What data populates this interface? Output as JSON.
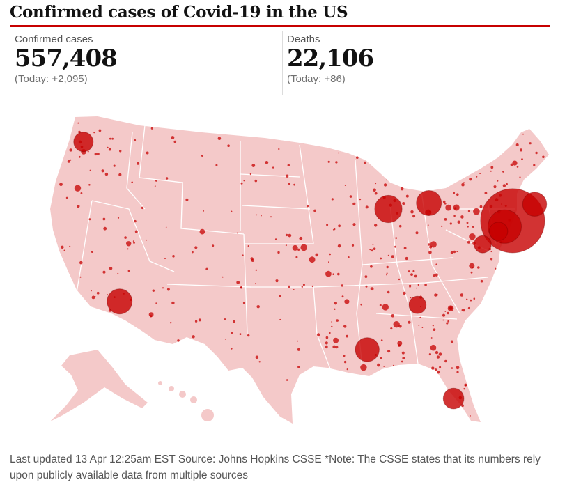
{
  "title": "Confirmed cases of Covid-19 in the US",
  "stats": {
    "confirmed": {
      "label": "Confirmed cases",
      "value": "557,408",
      "today": "(Today: +2,095)"
    },
    "deaths": {
      "label": "Deaths",
      "value": "22,106",
      "today": "(Today: +86)"
    }
  },
  "footer": "Last updated 13 Apr 12:25am EST Source: Johns Hopkins CSSE *Note: The CSSE states that its numbers rely upon publicly available data from multiple sources",
  "colors": {
    "land": "#f4c9c9",
    "bubble": "#c70000",
    "state_border": "#ffffff",
    "accent": "#c70000"
  },
  "map": {
    "type": "proportional-symbol",
    "hotspots": [
      {
        "place": "New York",
        "lat": 40.9,
        "lon": -73.6,
        "size": 1.0
      },
      {
        "place": "New Jersey",
        "lat": 40.4,
        "lon": -74.5,
        "size": 0.45
      },
      {
        "place": "Boston",
        "lat": 42.3,
        "lon": -71.1,
        "size": 0.28
      },
      {
        "place": "Philadelphia",
        "lat": 40.0,
        "lon": -75.2,
        "size": 0.18
      },
      {
        "place": "Detroit",
        "lat": 42.4,
        "lon": -83.1,
        "size": 0.3
      },
      {
        "place": "Chicago",
        "lat": 41.9,
        "lon": -87.7,
        "size": 0.34
      },
      {
        "place": "New Orleans",
        "lat": 29.95,
        "lon": -90.1,
        "size": 0.28
      },
      {
        "place": "Los Angeles",
        "lat": 34.05,
        "lon": -118.2,
        "size": 0.3
      },
      {
        "place": "Miami",
        "lat": 25.8,
        "lon": -80.3,
        "size": 0.22
      },
      {
        "place": "Seattle",
        "lat": 47.6,
        "lon": -122.3,
        "size": 0.2
      },
      {
        "place": "Atlanta",
        "lat": 33.75,
        "lon": -84.4,
        "size": 0.16
      },
      {
        "place": "Washington DC",
        "lat": 38.9,
        "lon": -77.0,
        "size": 0.16
      }
    ]
  }
}
